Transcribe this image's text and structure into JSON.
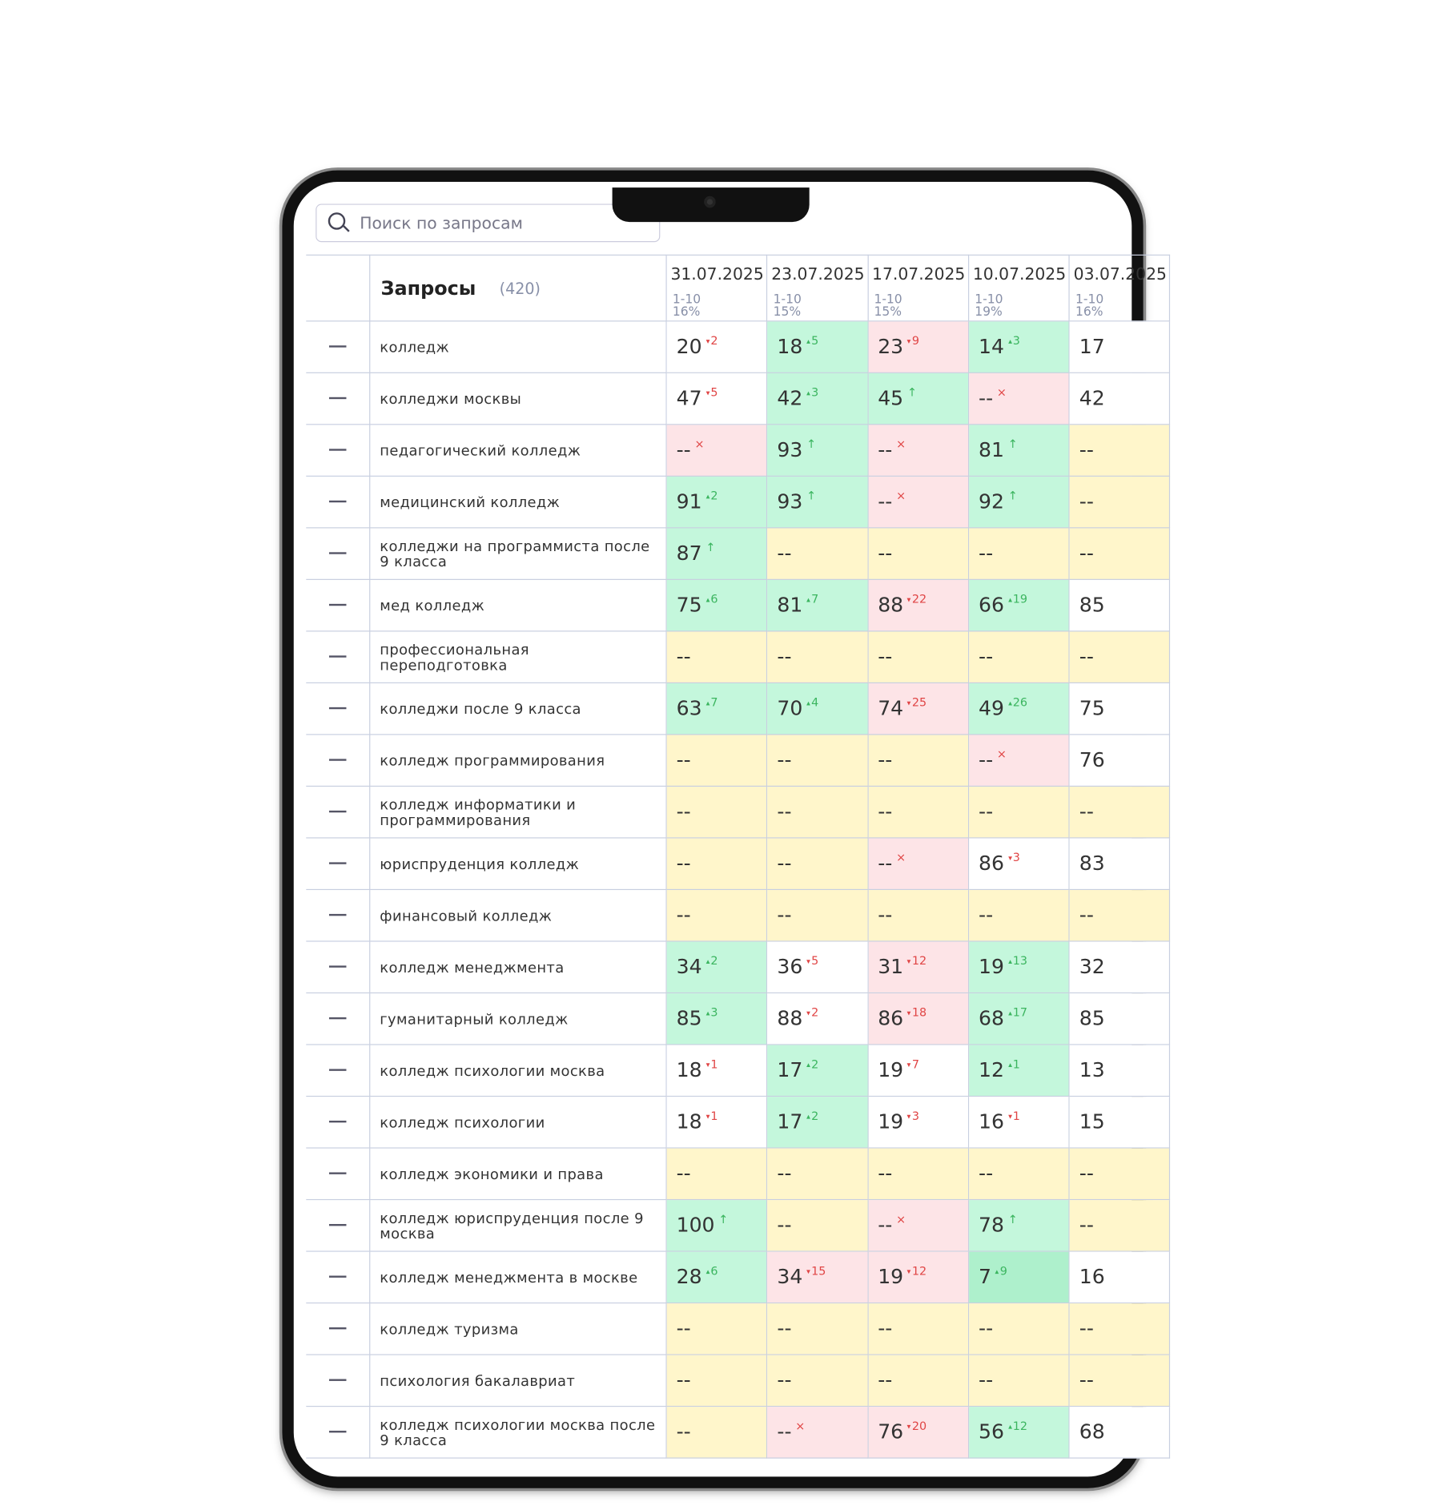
{
  "search": {
    "placeholder": "Поиск по запросам"
  },
  "header": {
    "title": "Запросы",
    "count": "(420)"
  },
  "palette": {
    "w": "#ffffff",
    "g": "#c4f7dc",
    "p": "#fde4e7",
    "y": "#fff6cb",
    "dg": "#aef0cc"
  },
  "columns": [
    {
      "date": "31.07.2025",
      "range": "1-10",
      "pct": "16%"
    },
    {
      "date": "23.07.2025",
      "range": "1-10",
      "pct": "15%"
    },
    {
      "date": "17.07.2025",
      "range": "1-10",
      "pct": "15%"
    },
    {
      "date": "10.07.2025",
      "range": "1-10",
      "pct": "19%"
    },
    {
      "date": "03.07.2025",
      "range": "1-10",
      "pct": "16%"
    }
  ],
  "rows": [
    {
      "query": "колледж",
      "cells": [
        {
          "v": "20",
          "d": "2",
          "t": "down",
          "arrow": true,
          "bg": "w"
        },
        {
          "v": "18",
          "d": "5",
          "t": "up",
          "arrow": true,
          "bg": "g"
        },
        {
          "v": "23",
          "d": "9",
          "t": "down",
          "arrow": true,
          "bg": "p"
        },
        {
          "v": "14",
          "d": "3",
          "t": "up",
          "arrow": true,
          "bg": "g"
        },
        {
          "v": "17",
          "bg": "w"
        }
      ]
    },
    {
      "query": "колледжи москвы",
      "cells": [
        {
          "v": "47",
          "d": "5",
          "t": "down",
          "arrow": true,
          "bg": "w"
        },
        {
          "v": "42",
          "d": "3",
          "t": "up",
          "arrow": true,
          "bg": "g"
        },
        {
          "v": "45",
          "d": "↑",
          "t": "up",
          "bg": "g"
        },
        {
          "v": "--",
          "d": "×",
          "t": "down",
          "bg": "p"
        },
        {
          "v": "42",
          "bg": "w"
        }
      ]
    },
    {
      "query": "педагогический колледж",
      "cells": [
        {
          "v": "--",
          "d": "×",
          "t": "down",
          "bg": "p"
        },
        {
          "v": "93",
          "d": "↑",
          "t": "up",
          "bg": "g"
        },
        {
          "v": "--",
          "d": "×",
          "t": "down",
          "bg": "p"
        },
        {
          "v": "81",
          "d": "↑",
          "t": "up",
          "bg": "g"
        },
        {
          "v": "--",
          "bg": "y"
        }
      ]
    },
    {
      "query": "медицинский колледж",
      "cells": [
        {
          "v": "91",
          "d": "2",
          "t": "up",
          "arrow": true,
          "bg": "g"
        },
        {
          "v": "93",
          "d": "↑",
          "t": "up",
          "bg": "g"
        },
        {
          "v": "--",
          "d": "×",
          "t": "down",
          "bg": "p"
        },
        {
          "v": "92",
          "d": "↑",
          "t": "up",
          "bg": "g"
        },
        {
          "v": "--",
          "bg": "y"
        }
      ]
    },
    {
      "query": "колледжи на программиста после 9 класса",
      "cells": [
        {
          "v": "87",
          "d": "↑",
          "t": "up",
          "bg": "g"
        },
        {
          "v": "--",
          "bg": "y"
        },
        {
          "v": "--",
          "bg": "y"
        },
        {
          "v": "--",
          "bg": "y"
        },
        {
          "v": "--",
          "bg": "y"
        }
      ]
    },
    {
      "query": "мед колледж",
      "cells": [
        {
          "v": "75",
          "d": "6",
          "t": "up",
          "arrow": true,
          "bg": "g"
        },
        {
          "v": "81",
          "d": "7",
          "t": "up",
          "arrow": true,
          "bg": "g"
        },
        {
          "v": "88",
          "d": "22",
          "t": "down",
          "arrow": true,
          "bg": "p"
        },
        {
          "v": "66",
          "d": "19",
          "t": "up",
          "arrow": true,
          "bg": "g"
        },
        {
          "v": "85",
          "bg": "w"
        }
      ]
    },
    {
      "query": "профессиональная переподготовка",
      "cells": [
        {
          "v": "--",
          "bg": "y"
        },
        {
          "v": "--",
          "bg": "y"
        },
        {
          "v": "--",
          "bg": "y"
        },
        {
          "v": "--",
          "bg": "y"
        },
        {
          "v": "--",
          "bg": "y"
        }
      ]
    },
    {
      "query": "колледжи после 9 класса",
      "cells": [
        {
          "v": "63",
          "d": "7",
          "t": "up",
          "arrow": true,
          "bg": "g"
        },
        {
          "v": "70",
          "d": "4",
          "t": "up",
          "arrow": true,
          "bg": "g"
        },
        {
          "v": "74",
          "d": "25",
          "t": "down",
          "arrow": true,
          "bg": "p"
        },
        {
          "v": "49",
          "d": "26",
          "t": "up",
          "arrow": true,
          "bg": "g"
        },
        {
          "v": "75",
          "bg": "w"
        }
      ]
    },
    {
      "query": "колледж программирования",
      "cells": [
        {
          "v": "--",
          "bg": "y"
        },
        {
          "v": "--",
          "bg": "y"
        },
        {
          "v": "--",
          "bg": "y"
        },
        {
          "v": "--",
          "d": "×",
          "t": "down",
          "bg": "p"
        },
        {
          "v": "76",
          "bg": "w"
        }
      ]
    },
    {
      "query": "колледж информатики и программирования",
      "cells": [
        {
          "v": "--",
          "bg": "y"
        },
        {
          "v": "--",
          "bg": "y"
        },
        {
          "v": "--",
          "bg": "y"
        },
        {
          "v": "--",
          "bg": "y"
        },
        {
          "v": "--",
          "bg": "y"
        }
      ]
    },
    {
      "query": "юриспруденция колледж",
      "cells": [
        {
          "v": "--",
          "bg": "y"
        },
        {
          "v": "--",
          "bg": "y"
        },
        {
          "v": "--",
          "d": "×",
          "t": "down",
          "bg": "p"
        },
        {
          "v": "86",
          "d": "3",
          "t": "down",
          "arrow": true,
          "bg": "w"
        },
        {
          "v": "83",
          "bg": "w"
        }
      ]
    },
    {
      "query": "финансовый колледж",
      "cells": [
        {
          "v": "--",
          "bg": "y"
        },
        {
          "v": "--",
          "bg": "y"
        },
        {
          "v": "--",
          "bg": "y"
        },
        {
          "v": "--",
          "bg": "y"
        },
        {
          "v": "--",
          "bg": "y"
        }
      ]
    },
    {
      "query": "колледж менеджмента",
      "cells": [
        {
          "v": "34",
          "d": "2",
          "t": "up",
          "arrow": true,
          "bg": "g"
        },
        {
          "v": "36",
          "d": "5",
          "t": "down",
          "arrow": true,
          "bg": "w"
        },
        {
          "v": "31",
          "d": "12",
          "t": "down",
          "arrow": true,
          "bg": "p"
        },
        {
          "v": "19",
          "d": "13",
          "t": "up",
          "arrow": true,
          "bg": "g"
        },
        {
          "v": "32",
          "bg": "w"
        }
      ]
    },
    {
      "query": "гуманитарный колледж",
      "cells": [
        {
          "v": "85",
          "d": "3",
          "t": "up",
          "arrow": true,
          "bg": "g"
        },
        {
          "v": "88",
          "d": "2",
          "t": "down",
          "arrow": true,
          "bg": "w"
        },
        {
          "v": "86",
          "d": "18",
          "t": "down",
          "arrow": true,
          "bg": "p"
        },
        {
          "v": "68",
          "d": "17",
          "t": "up",
          "arrow": true,
          "bg": "g"
        },
        {
          "v": "85",
          "bg": "w"
        }
      ]
    },
    {
      "query": "колледж психологии москва",
      "cells": [
        {
          "v": "18",
          "d": "1",
          "t": "down",
          "arrow": true,
          "bg": "w"
        },
        {
          "v": "17",
          "d": "2",
          "t": "up",
          "arrow": true,
          "bg": "g"
        },
        {
          "v": "19",
          "d": "7",
          "t": "down",
          "arrow": true,
          "bg": "w"
        },
        {
          "v": "12",
          "d": "1",
          "t": "up",
          "arrow": true,
          "bg": "g"
        },
        {
          "v": "13",
          "bg": "w"
        }
      ]
    },
    {
      "query": "колледж психологии",
      "cells": [
        {
          "v": "18",
          "d": "1",
          "t": "down",
          "arrow": true,
          "bg": "w"
        },
        {
          "v": "17",
          "d": "2",
          "t": "up",
          "arrow": true,
          "bg": "g"
        },
        {
          "v": "19",
          "d": "3",
          "t": "down",
          "arrow": true,
          "bg": "w"
        },
        {
          "v": "16",
          "d": "1",
          "t": "down",
          "arrow": true,
          "bg": "w"
        },
        {
          "v": "15",
          "bg": "w"
        }
      ]
    },
    {
      "query": "колледж экономики и права",
      "cells": [
        {
          "v": "--",
          "bg": "y"
        },
        {
          "v": "--",
          "bg": "y"
        },
        {
          "v": "--",
          "bg": "y"
        },
        {
          "v": "--",
          "bg": "y"
        },
        {
          "v": "--",
          "bg": "y"
        }
      ]
    },
    {
      "query": "колледж юриспруденция после 9 москва",
      "cells": [
        {
          "v": "100",
          "d": "↑",
          "t": "up",
          "bg": "g"
        },
        {
          "v": "--",
          "bg": "y"
        },
        {
          "v": "--",
          "d": "×",
          "t": "down",
          "bg": "p"
        },
        {
          "v": "78",
          "d": "↑",
          "t": "up",
          "bg": "g"
        },
        {
          "v": "--",
          "bg": "y"
        }
      ]
    },
    {
      "query": "колледж менеджмента в москве",
      "cells": [
        {
          "v": "28",
          "d": "6",
          "t": "up",
          "arrow": true,
          "bg": "g"
        },
        {
          "v": "34",
          "d": "15",
          "t": "down",
          "arrow": true,
          "bg": "p"
        },
        {
          "v": "19",
          "d": "12",
          "t": "down",
          "arrow": true,
          "bg": "p"
        },
        {
          "v": "7",
          "d": "9",
          "t": "up",
          "arrow": true,
          "bg": "dg"
        },
        {
          "v": "16",
          "bg": "w"
        }
      ]
    },
    {
      "query": "колледж туризма",
      "cells": [
        {
          "v": "--",
          "bg": "y"
        },
        {
          "v": "--",
          "bg": "y"
        },
        {
          "v": "--",
          "bg": "y"
        },
        {
          "v": "--",
          "bg": "y"
        },
        {
          "v": "--",
          "bg": "y"
        }
      ]
    },
    {
      "query": "психология бакалавриат",
      "cells": [
        {
          "v": "--",
          "bg": "y"
        },
        {
          "v": "--",
          "bg": "y"
        },
        {
          "v": "--",
          "bg": "y"
        },
        {
          "v": "--",
          "bg": "y"
        },
        {
          "v": "--",
          "bg": "y"
        }
      ]
    },
    {
      "query": "колледж психологии москва после 9 класса",
      "cells": [
        {
          "v": "--",
          "bg": "y"
        },
        {
          "v": "--",
          "d": "×",
          "t": "down",
          "bg": "p"
        },
        {
          "v": "76",
          "d": "20",
          "t": "down",
          "arrow": true,
          "bg": "p"
        },
        {
          "v": "56",
          "d": "12",
          "t": "up",
          "arrow": true,
          "bg": "g"
        },
        {
          "v": "68",
          "bg": "w"
        }
      ]
    }
  ]
}
